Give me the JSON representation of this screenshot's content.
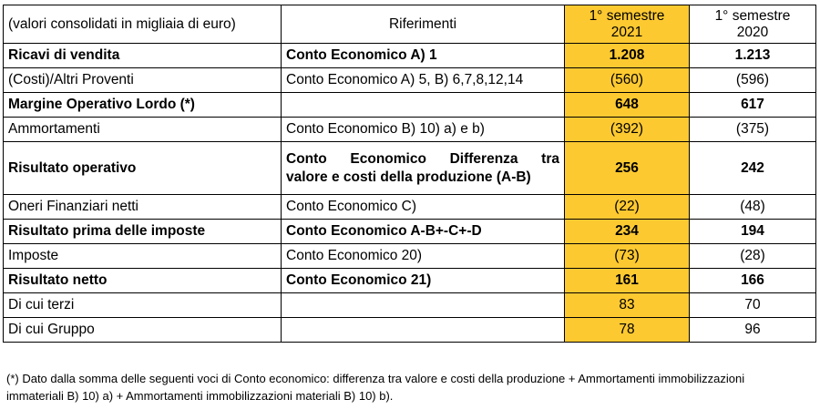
{
  "header": {
    "col0": "(valori consolidati in migliaia di euro)",
    "col1": "Riferimenti",
    "col2": {
      "line1": "1° semestre",
      "line2": "2021"
    },
    "col3": {
      "line1": "1° semestre",
      "line2": "2020"
    }
  },
  "rows": [
    {
      "label": "Ricavi di vendita",
      "ref": "Conto Economico A) 1",
      "v2021": "1.208",
      "v2020": "1.213"
    },
    {
      "label": "(Costi)/Altri Proventi",
      "ref": "Conto Economico A) 5, B) 6,7,8,12,14",
      "v2021": "(560)",
      "v2020": "(596)"
    },
    {
      "label": "Margine Operativo Lordo (*)",
      "ref": "",
      "v2021": "648",
      "v2020": "617"
    },
    {
      "label": "Ammortamenti",
      "ref": "Conto Economico B) 10) a) e b)",
      "v2021": "(392)",
      "v2020": "(375)"
    },
    {
      "label": "Risultato operativo",
      "ref_line1": "Conto Economico Differenza tra",
      "ref_line2": "valore e costi della produzione (A-B)",
      "v2021": "256",
      "v2020": "242"
    },
    {
      "label": "Oneri Finanziari netti",
      "ref": "Conto Economico C)",
      "v2021": "(22)",
      "v2020": "(48)"
    },
    {
      "label": "Risultato prima delle imposte",
      "ref": "Conto Economico A-B+-C+-D",
      "v2021": "234",
      "v2020": "194"
    },
    {
      "label": "Imposte",
      "ref": "Conto Economico 20)",
      "v2021": "(73)",
      "v2020": "(28)"
    },
    {
      "label": "Risultato netto",
      "ref": "Conto Economico 21)",
      "v2021": "161",
      "v2020": "166"
    },
    {
      "label": "Di cui terzi",
      "ref": "",
      "v2021": "83",
      "v2020": "70"
    },
    {
      "label": "Di cui Gruppo",
      "ref": "",
      "v2021": "78",
      "v2020": "96"
    }
  ],
  "footnote": {
    "line1": "(*) Dato dalla somma delle seguenti voci di Conto economico: differenza tra valore e costi della produzione + Ammortamenti immobilizzazioni",
    "line2": "immateriali B) 10) a) + Ammortamenti immobilizzazioni materiali B) 10) b)."
  },
  "colors": {
    "highlight_column": "#fdc931",
    "grid": "#000000"
  }
}
